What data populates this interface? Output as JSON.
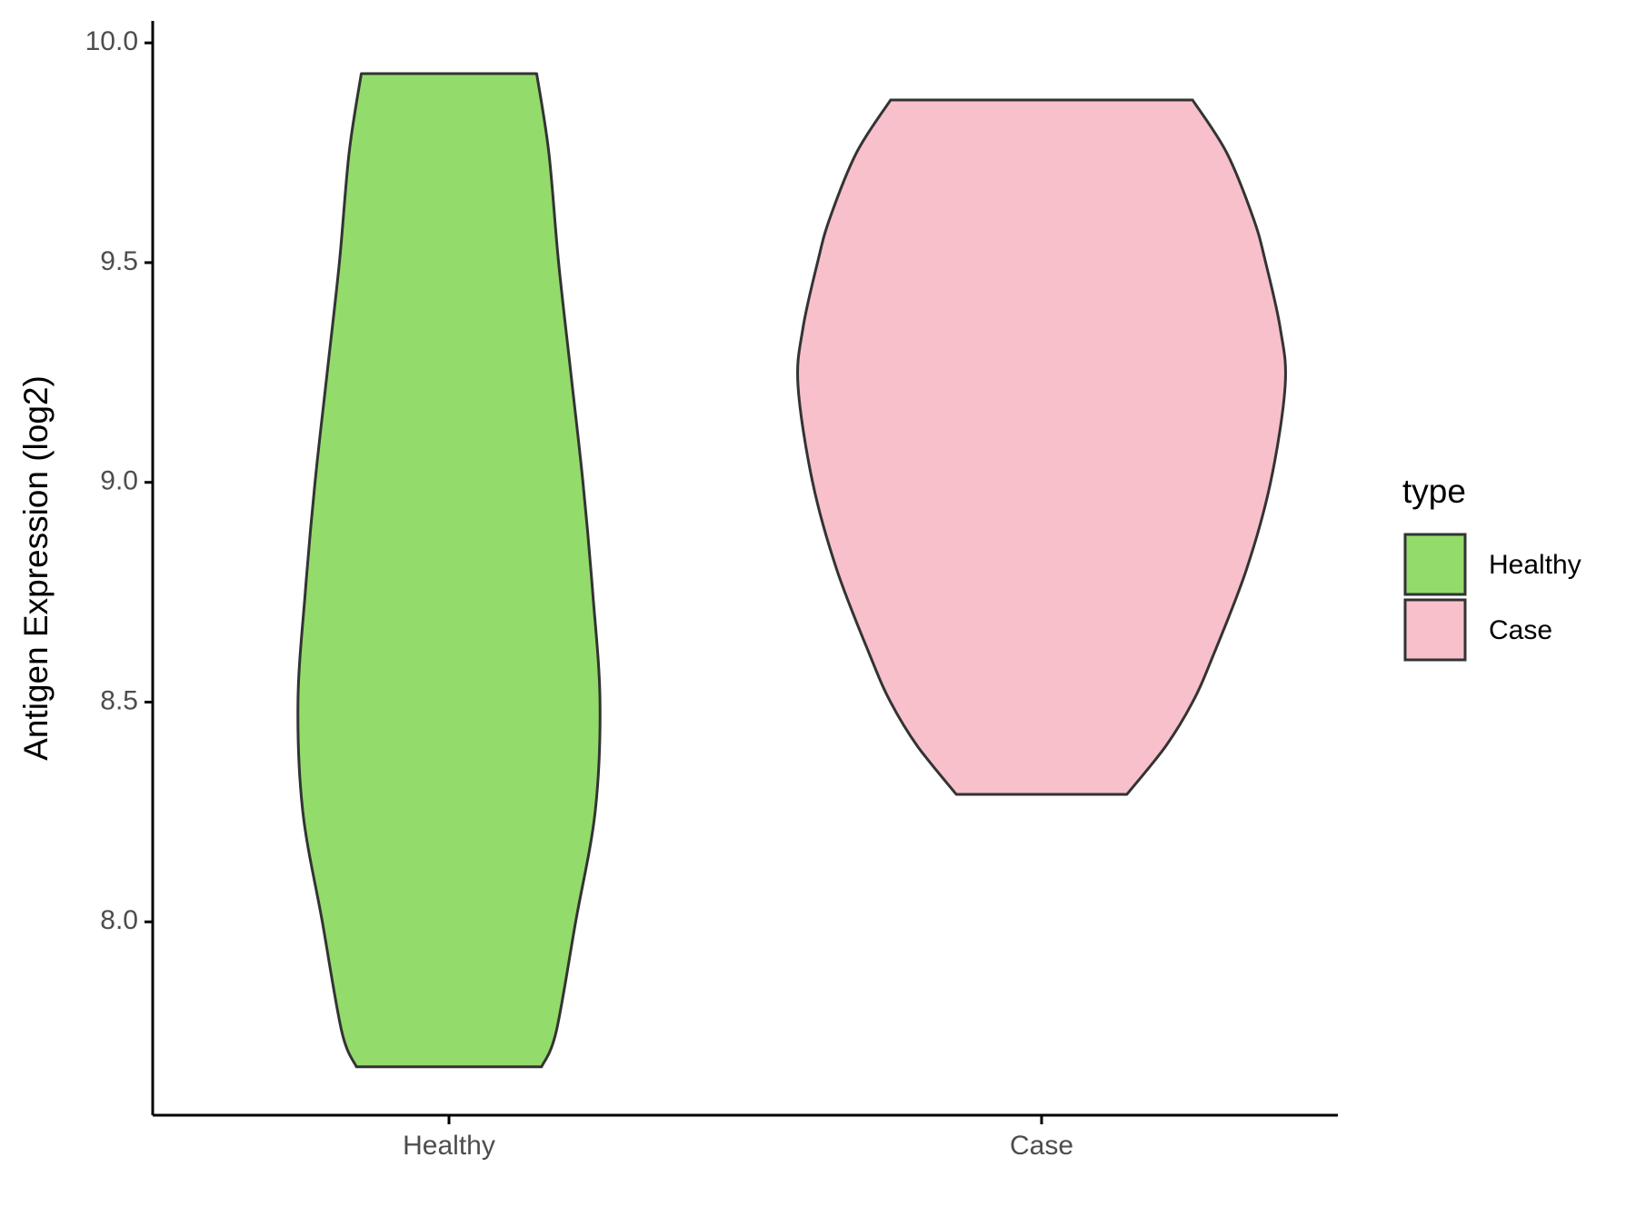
{
  "chart_data": {
    "type": "violin",
    "y_label": "Antigen Expression (log2)",
    "legend_title": "type",
    "legend_position": "right",
    "categories": [
      "Healthy",
      "Case"
    ],
    "series": [
      {
        "name": "Healthy",
        "color": "#93db6b",
        "y": [
          9.93,
          9.75,
          9.5,
          9.25,
          9.0,
          8.75,
          8.5,
          8.25,
          8.0,
          7.75,
          7.67
        ],
        "density": [
          0.36,
          0.41,
          0.45,
          0.5,
          0.55,
          0.59,
          0.62,
          0.6,
          0.52,
          0.44,
          0.38
        ]
      },
      {
        "name": "Case",
        "color": "#f7c0cb",
        "y": [
          9.87,
          9.75,
          9.6,
          9.5,
          9.35,
          9.22,
          9.0,
          8.8,
          8.6,
          8.5,
          8.4,
          8.29
        ],
        "density": [
          0.62,
          0.76,
          0.87,
          0.92,
          0.98,
          1.0,
          0.94,
          0.84,
          0.7,
          0.62,
          0.51,
          0.35
        ]
      }
    ],
    "ylim": [
      7.56,
      10.05
    ],
    "yticks": [
      {
        "value": 8,
        "label": "8.0"
      },
      8.5,
      {
        "value": 9,
        "label": "9.0"
      },
      9.5,
      {
        "value": 10,
        "label": "10.0"
      }
    ],
    "grid": false
  }
}
